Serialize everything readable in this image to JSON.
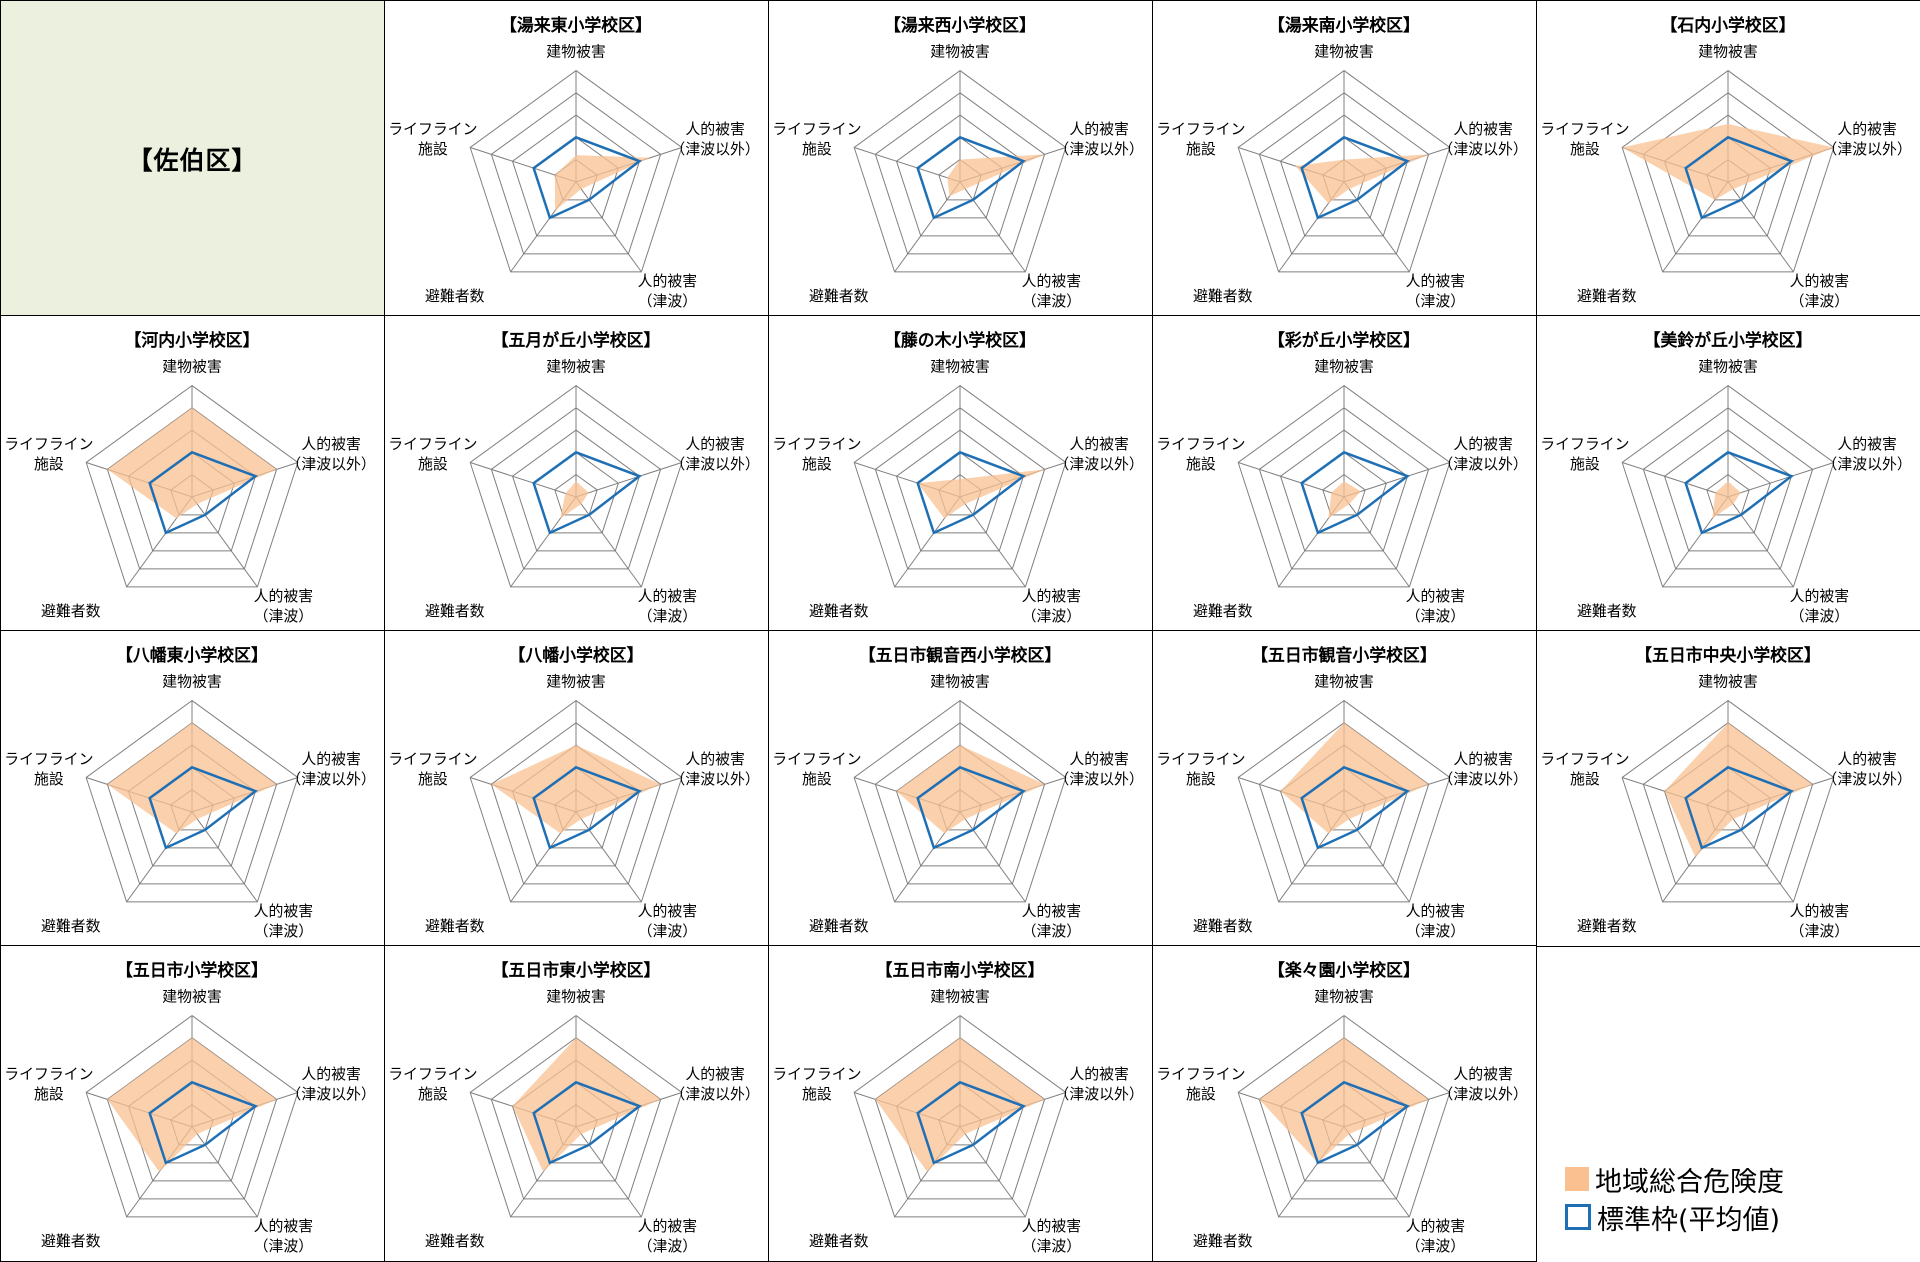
{
  "district_title": "【佐伯区】",
  "axis_labels": [
    "建物被害",
    "人的被害\n（津波以外）",
    "人的被害\n（津波）",
    "避難者数",
    "ライフライン\n施設"
  ],
  "legend": {
    "fill_label": "地域総合危険度",
    "line_label": "標準枠(平均値)"
  },
  "colors": {
    "fill": "#fac090",
    "line": "#1f6fb5",
    "grid": "#7f7f7f",
    "title_bg": "#ebf1de"
  },
  "chart_data": {
    "type": "radar",
    "axes": [
      "建物被害",
      "人的被害（津波以外）",
      "人的被害（津波）",
      "避難者数",
      "ライフライン施設"
    ],
    "range": [
      0,
      5
    ],
    "grid_rings": 5,
    "standard": [
      2,
      3,
      1,
      2,
      2
    ],
    "charts": [
      {
        "title": "【湯来東小学校区】",
        "values": [
          1.2,
          3.5,
          0.4,
          1.6,
          1.0
        ]
      },
      {
        "title": "【湯来西小学校区】",
        "values": [
          1.0,
          4.0,
          0.4,
          0.8,
          0.6
        ]
      },
      {
        "title": "【湯来南小学校区】",
        "values": [
          1.0,
          4.0,
          0.4,
          1.2,
          2.3
        ]
      },
      {
        "title": "【石内小学校区】",
        "values": [
          2.6,
          5.0,
          0.4,
          1.0,
          5.0
        ]
      },
      {
        "title": "【河内小学校区】",
        "values": [
          4.0,
          4.0,
          0.4,
          1.2,
          4.0
        ]
      },
      {
        "title": "【五月が丘小学校区】",
        "values": [
          0.7,
          0.6,
          0.4,
          1.2,
          0.5
        ]
      },
      {
        "title": "【藤の木小学校区】",
        "values": [
          0.8,
          4.0,
          0.4,
          1.2,
          2.0
        ]
      },
      {
        "title": "【彩が丘小学校区】",
        "values": [
          0.7,
          0.8,
          0.4,
          1.2,
          0.6
        ]
      },
      {
        "title": "【美鈴が丘小学校区】",
        "values": [
          0.7,
          0.6,
          0.4,
          1.2,
          0.6
        ]
      },
      {
        "title": "【八幡東小学校区】",
        "values": [
          4.0,
          4.0,
          0.4,
          1.2,
          4.0
        ]
      },
      {
        "title": "【八幡小学校区】",
        "values": [
          3.0,
          4.0,
          0.4,
          1.2,
          4.0
        ]
      },
      {
        "title": "【五日市観音西小学校区】",
        "values": [
          3.0,
          4.0,
          0.4,
          1.2,
          3.0
        ]
      },
      {
        "title": "【五日市観音小学校区】",
        "values": [
          4.0,
          4.0,
          0.4,
          1.2,
          3.0
        ]
      },
      {
        "title": "【五日市中央小学校区】",
        "values": [
          4.0,
          4.0,
          0.4,
          2.5,
          3.0
        ]
      },
      {
        "title": "【五日市小学校区】",
        "values": [
          4.0,
          4.0,
          0.4,
          2.5,
          4.0
        ]
      },
      {
        "title": "【五日市東小学校区】",
        "values": [
          4.0,
          4.0,
          0.4,
          2.5,
          3.0
        ]
      },
      {
        "title": "【五日市南小学校区】",
        "values": [
          4.0,
          4.0,
          0.4,
          2.5,
          4.0
        ]
      },
      {
        "title": "【楽々園小学校区】",
        "values": [
          4.0,
          4.0,
          0.4,
          2.0,
          4.0
        ]
      }
    ]
  }
}
